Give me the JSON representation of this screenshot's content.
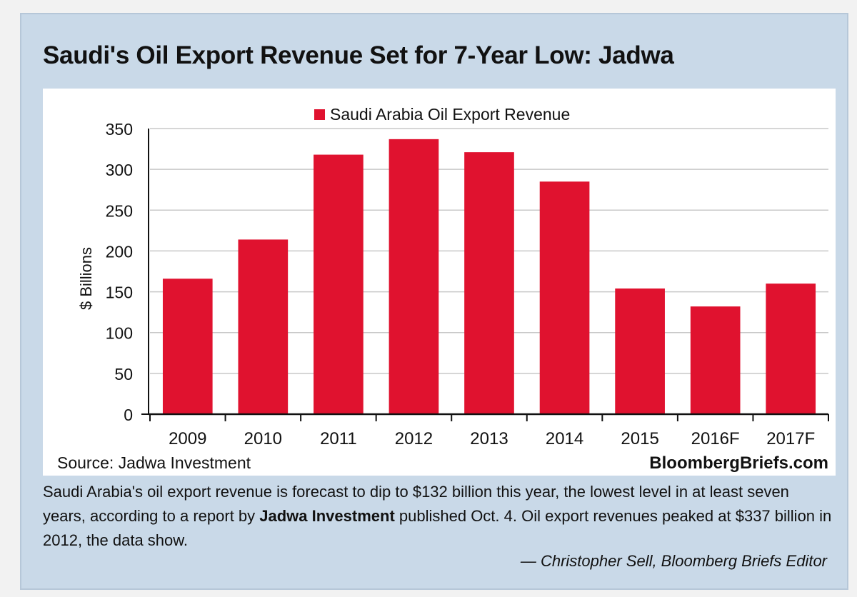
{
  "headline": "Saudi's Oil Export Revenue Set for 7-Year Low: Jadwa",
  "chart_data": {
    "type": "bar",
    "categories": [
      "2009",
      "2010",
      "2011",
      "2012",
      "2013",
      "2014",
      "2015",
      "2016F",
      "2017F"
    ],
    "series": [
      {
        "name": "Saudi Arabia Oil Export Revenue",
        "values": [
          166,
          214,
          318,
          337,
          321,
          285,
          154,
          132,
          160
        ],
        "color": "#e0122f"
      }
    ],
    "ylabel": "$ Billions",
    "xlabel": "",
    "ylim": [
      0,
      350
    ],
    "yticks": [
      0,
      50,
      100,
      150,
      200,
      250,
      300,
      350
    ],
    "grid": "horizontal",
    "legend": "top-center"
  },
  "source": "Source: Jadwa Investment",
  "brand": "BloombergBriefs.com",
  "caption": {
    "part1": "Saudi Arabia's oil export revenue is forecast to dip to $132 billion this year, the lowest level in at least seven years, according to a report by ",
    "bold": "Jadwa Investment",
    "part2": " published Oct. 4. Oil export revenues peaked at $337 billion in 2012, the data show."
  },
  "credit": "— Christopher Sell, Bloomberg Briefs Editor"
}
